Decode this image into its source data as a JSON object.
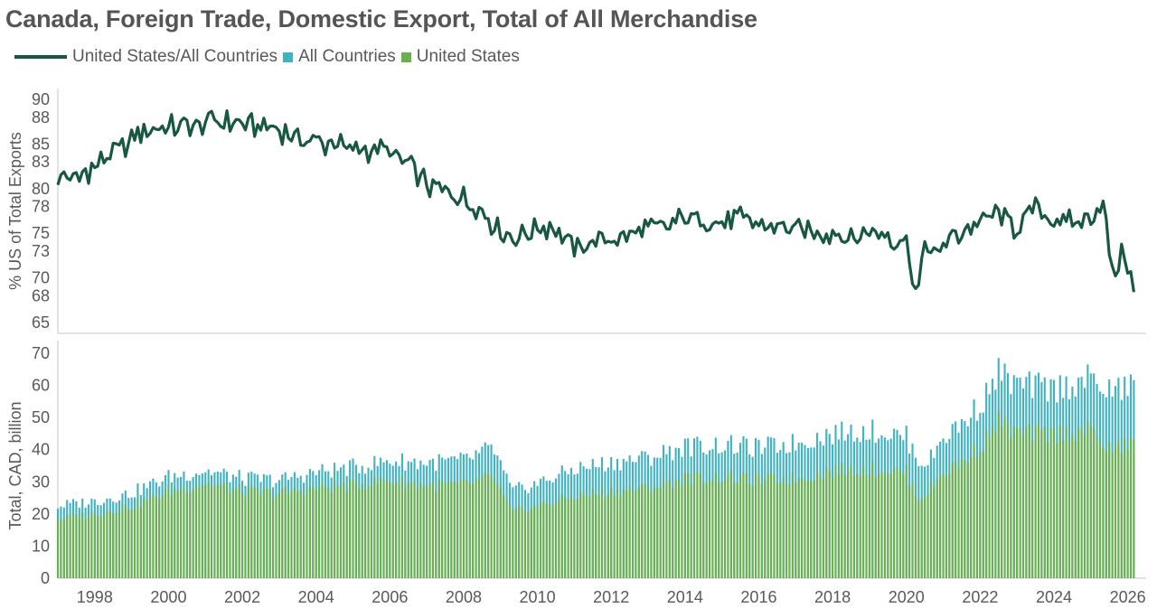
{
  "colors": {
    "line": "#17583f",
    "all_countries": "#3fb3c2",
    "united_states": "#6ab04c",
    "axis": "#d9d9d9",
    "text": "#595959"
  },
  "chart_data": [
    {
      "type": "line",
      "title": "Canada, Foreign Trade, Domestic Export, Total of All Merchandise",
      "ylabel": "% US of Total Exports",
      "ylim": [
        65,
        90
      ],
      "yticks": [
        "90",
        "88",
        "85",
        "83",
        "80",
        "78",
        "75",
        "73",
        "70",
        "68",
        "65"
      ],
      "x_range": [
        1997.0,
        2026.5
      ],
      "series": [
        {
          "name": "United States/All Countries",
          "x": [
            1997.0,
            1997.5,
            1998.0,
            1998.5,
            1999.0,
            1999.5,
            2000.0,
            2000.5,
            2001.0,
            2001.5,
            2002.0,
            2002.5,
            2003.0,
            2003.5,
            2004.0,
            2004.5,
            2005.0,
            2005.5,
            2006.0,
            2006.5,
            2007.0,
            2007.5,
            2008.0,
            2008.5,
            2009.0,
            2009.5,
            2010.0,
            2010.5,
            2011.0,
            2011.5,
            2012.0,
            2012.5,
            2013.0,
            2013.5,
            2014.0,
            2014.5,
            2015.0,
            2015.5,
            2016.0,
            2016.5,
            2017.0,
            2017.5,
            2018.0,
            2018.5,
            2019.0,
            2019.5,
            2020.0,
            2020.3,
            2020.5,
            2020.8,
            2021.0,
            2021.5,
            2022.0,
            2022.5,
            2023.0,
            2023.5,
            2024.0,
            2024.5,
            2025.0,
            2025.3,
            2025.6,
            2025.9,
            2026.2
          ],
          "values": [
            81.5,
            81.0,
            82.5,
            83.8,
            85.5,
            87.0,
            86.8,
            87.2,
            87.5,
            87.4,
            87.3,
            87.0,
            86.5,
            86.0,
            85.2,
            84.8,
            84.5,
            84.4,
            84.3,
            82.5,
            80.5,
            79.5,
            79.0,
            77.5,
            75.0,
            74.5,
            75.5,
            75.8,
            73.0,
            74.0,
            74.2,
            75.0,
            75.5,
            75.8,
            76.8,
            76.5,
            76.2,
            76.5,
            76.0,
            75.8,
            75.5,
            75.0,
            75.0,
            74.5,
            75.0,
            74.8,
            74.0,
            67.5,
            74.5,
            72.0,
            74.0,
            75.0,
            76.5,
            77.0,
            75.5,
            78.0,
            76.5,
            76.0,
            76.5,
            79.0,
            70.0,
            73.0,
            68.0
          ]
        }
      ]
    },
    {
      "type": "bar",
      "ylabel": "Total, CAD, billion",
      "ylim": [
        0,
        70
      ],
      "yticks": [
        "70",
        "60",
        "50",
        "40",
        "30",
        "20",
        "10",
        "0"
      ],
      "x_range": [
        1997.0,
        2026.5
      ],
      "xticks": [
        "1998",
        "2000",
        "2002",
        "2004",
        "2006",
        "2008",
        "2010",
        "2012",
        "2014",
        "2016",
        "2018",
        "2020",
        "2022",
        "2024",
        "2026"
      ],
      "series": [
        {
          "name": "All Countries",
          "x": [
            1997,
            1998,
            1999,
            2000,
            2001,
            2002,
            2003,
            2004,
            2005,
            2006,
            2007,
            2008,
            2008.8,
            2009.3,
            2010,
            2011,
            2012,
            2013,
            2014,
            2015,
            2016,
            2017,
            2018,
            2019,
            2020.0,
            2020.3,
            2020.6,
            2021,
            2021.5,
            2022,
            2022.5,
            2023,
            2024,
            2025,
            2025.5,
            2026.2
          ],
          "values": [
            22.5,
            24.0,
            26.5,
            31.5,
            33.5,
            31.0,
            30.5,
            33.0,
            34.5,
            36.5,
            36.0,
            36.5,
            40.5,
            27.0,
            29.5,
            34.0,
            36.0,
            37.5,
            41.0,
            41.5,
            40.5,
            42.0,
            45.0,
            46.0,
            44.0,
            37.0,
            36.0,
            44.0,
            48.0,
            54.0,
            64.0,
            60.0,
            59.0,
            62.0,
            58.0,
            60.0
          ]
        },
        {
          "name": "United States",
          "x": [
            1997,
            1998,
            1999,
            2000,
            2001,
            2002,
            2003,
            2004,
            2005,
            2006,
            2007,
            2008,
            2008.8,
            2009.3,
            2010,
            2011,
            2012,
            2013,
            2014,
            2015,
            2016,
            2017,
            2018,
            2019,
            2020.0,
            2020.3,
            2020.6,
            2021,
            2021.5,
            2022,
            2022.5,
            2023,
            2024,
            2025,
            2025.5,
            2026.2
          ],
          "values": [
            18.5,
            20.0,
            22.5,
            27.0,
            29.5,
            27.0,
            26.5,
            28.0,
            29.0,
            30.5,
            29.0,
            29.0,
            31.5,
            20.5,
            22.5,
            25.5,
            27.0,
            28.0,
            31.0,
            31.5,
            30.5,
            31.0,
            33.5,
            34.0,
            33.0,
            25.0,
            27.0,
            33.0,
            36.0,
            41.0,
            49.0,
            45.0,
            45.0,
            46.0,
            40.0,
            42.0
          ]
        }
      ]
    }
  ]
}
